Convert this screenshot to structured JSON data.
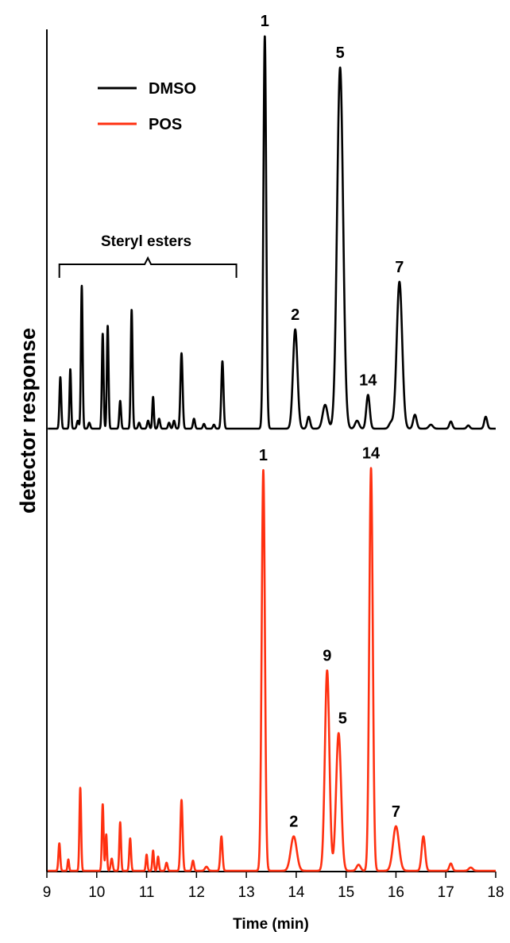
{
  "chart_data": {
    "type": "line",
    "title": "",
    "xlabel": "Time (min)",
    "ylabel": "detector response",
    "xlim": [
      9,
      18
    ],
    "xticks": [
      9,
      10,
      11,
      12,
      13,
      14,
      15,
      16,
      17,
      18
    ],
    "ylim": [
      0,
      1
    ],
    "grid": false,
    "legend": {
      "position": "top-left"
    },
    "bracket": {
      "label": "Steryl esters",
      "x_range": [
        9.25,
        12.8
      ]
    },
    "series": [
      {
        "name": "DMSO",
        "color": "#000000",
        "peaks": [
          {
            "x": 9.27,
            "h": 0.13,
            "w": 0.018
          },
          {
            "x": 9.47,
            "h": 0.15,
            "w": 0.016
          },
          {
            "x": 9.62,
            "h": 0.02,
            "w": 0.02
          },
          {
            "x": 9.7,
            "h": 0.36,
            "w": 0.017
          },
          {
            "x": 9.85,
            "h": 0.015,
            "w": 0.02
          },
          {
            "x": 10.12,
            "h": 0.24,
            "w": 0.017
          },
          {
            "x": 10.22,
            "h": 0.26,
            "w": 0.017
          },
          {
            "x": 10.47,
            "h": 0.07,
            "w": 0.018
          },
          {
            "x": 10.7,
            "h": 0.3,
            "w": 0.018
          },
          {
            "x": 10.85,
            "h": 0.015,
            "w": 0.02
          },
          {
            "x": 11.03,
            "h": 0.02,
            "w": 0.02
          },
          {
            "x": 11.13,
            "h": 0.08,
            "w": 0.016
          },
          {
            "x": 11.25,
            "h": 0.025,
            "w": 0.02
          },
          {
            "x": 11.45,
            "h": 0.015,
            "w": 0.02
          },
          {
            "x": 11.55,
            "h": 0.02,
            "w": 0.02
          },
          {
            "x": 11.7,
            "h": 0.19,
            "w": 0.022
          },
          {
            "x": 11.95,
            "h": 0.025,
            "w": 0.02
          },
          {
            "x": 12.15,
            "h": 0.012,
            "w": 0.02
          },
          {
            "x": 12.35,
            "h": 0.01,
            "w": 0.02
          },
          {
            "x": 12.52,
            "h": 0.17,
            "w": 0.022
          },
          {
            "x": 13.37,
            "h": 0.99,
            "w": 0.028
          },
          {
            "x": 13.98,
            "h": 0.25,
            "w": 0.045
          },
          {
            "x": 14.25,
            "h": 0.03,
            "w": 0.03
          },
          {
            "x": 14.58,
            "h": 0.06,
            "w": 0.05
          },
          {
            "x": 14.88,
            "h": 0.91,
            "w": 0.06
          },
          {
            "x": 15.22,
            "h": 0.02,
            "w": 0.04
          },
          {
            "x": 15.44,
            "h": 0.085,
            "w": 0.035
          },
          {
            "x": 15.9,
            "h": 0.015,
            "w": 0.04
          },
          {
            "x": 16.07,
            "h": 0.37,
            "w": 0.055
          },
          {
            "x": 16.38,
            "h": 0.035,
            "w": 0.035
          },
          {
            "x": 16.7,
            "h": 0.01,
            "w": 0.04
          },
          {
            "x": 17.1,
            "h": 0.018,
            "w": 0.03
          },
          {
            "x": 17.45,
            "h": 0.008,
            "w": 0.03
          },
          {
            "x": 17.8,
            "h": 0.03,
            "w": 0.03
          }
        ]
      },
      {
        "name": "POS",
        "color": "#ff3010",
        "peaks": [
          {
            "x": 9.25,
            "h": 0.068,
            "w": 0.018
          },
          {
            "x": 9.43,
            "h": 0.028,
            "w": 0.015
          },
          {
            "x": 9.67,
            "h": 0.205,
            "w": 0.017
          },
          {
            "x": 10.12,
            "h": 0.165,
            "w": 0.017
          },
          {
            "x": 10.19,
            "h": 0.09,
            "w": 0.016
          },
          {
            "x": 10.3,
            "h": 0.03,
            "w": 0.02
          },
          {
            "x": 10.47,
            "h": 0.12,
            "w": 0.017
          },
          {
            "x": 10.67,
            "h": 0.08,
            "w": 0.018
          },
          {
            "x": 11.0,
            "h": 0.04,
            "w": 0.016
          },
          {
            "x": 11.13,
            "h": 0.05,
            "w": 0.016
          },
          {
            "x": 11.23,
            "h": 0.035,
            "w": 0.017
          },
          {
            "x": 11.4,
            "h": 0.02,
            "w": 0.02
          },
          {
            "x": 11.7,
            "h": 0.175,
            "w": 0.022
          },
          {
            "x": 11.93,
            "h": 0.025,
            "w": 0.02
          },
          {
            "x": 12.2,
            "h": 0.01,
            "w": 0.03
          },
          {
            "x": 12.5,
            "h": 0.085,
            "w": 0.022
          },
          {
            "x": 13.34,
            "h": 0.99,
            "w": 0.032
          },
          {
            "x": 13.95,
            "h": 0.085,
            "w": 0.06
          },
          {
            "x": 14.62,
            "h": 0.495,
            "w": 0.045
          },
          {
            "x": 14.85,
            "h": 0.34,
            "w": 0.05
          },
          {
            "x": 15.25,
            "h": 0.015,
            "w": 0.04
          },
          {
            "x": 15.5,
            "h": 0.995,
            "w": 0.035
          },
          {
            "x": 16.0,
            "h": 0.11,
            "w": 0.06
          },
          {
            "x": 16.55,
            "h": 0.085,
            "w": 0.035
          },
          {
            "x": 17.1,
            "h": 0.018,
            "w": 0.03
          },
          {
            "x": 17.5,
            "h": 0.008,
            "w": 0.04
          }
        ]
      }
    ],
    "annotations": [
      {
        "series": "DMSO",
        "text": "1",
        "x": 13.37
      },
      {
        "series": "DMSO",
        "text": "5",
        "x": 14.88
      },
      {
        "series": "DMSO",
        "text": "2",
        "x": 13.98
      },
      {
        "series": "DMSO",
        "text": "7",
        "x": 16.07
      },
      {
        "series": "DMSO",
        "text": "14",
        "x": 15.44
      },
      {
        "series": "POS",
        "text": "1",
        "x": 13.34
      },
      {
        "series": "POS",
        "text": "14",
        "x": 15.5
      },
      {
        "series": "POS",
        "text": "9",
        "x": 14.62
      },
      {
        "series": "POS",
        "text": "5",
        "x": 14.85
      },
      {
        "series": "POS",
        "text": "2",
        "x": 13.95
      },
      {
        "series": "POS",
        "text": "7",
        "x": 16.0
      }
    ]
  }
}
